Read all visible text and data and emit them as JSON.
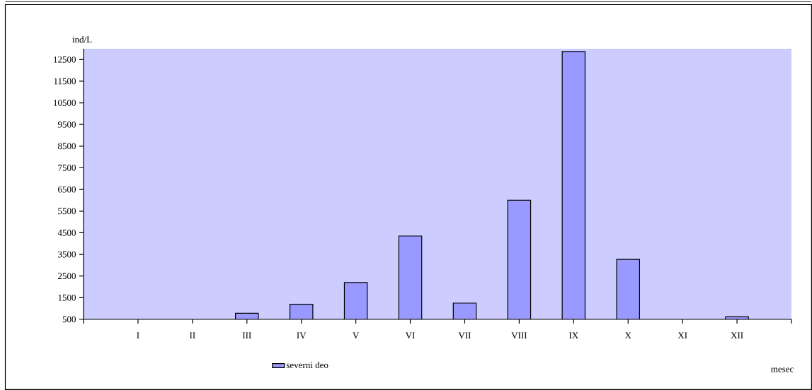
{
  "chart_data": {
    "type": "bar",
    "categories": [
      "I",
      "II",
      "III",
      "IV",
      "V",
      "VI",
      "VII",
      "VIII",
      "IX",
      "X",
      "XI",
      "XII"
    ],
    "series": [
      {
        "name": "severni deo",
        "color": "#9999ff",
        "values": [
          null,
          null,
          780,
          1200,
          2200,
          4350,
          1250,
          6000,
          12870,
          3270,
          null,
          620
        ]
      }
    ],
    "xlabel": "mesec",
    "ylabel": "ind/L",
    "ylim": [
      500,
      13000
    ],
    "yticks": [
      500,
      1500,
      2500,
      3500,
      4500,
      5500,
      6500,
      7500,
      8500,
      9500,
      10500,
      11500,
      12500
    ],
    "legend": "bottom"
  }
}
